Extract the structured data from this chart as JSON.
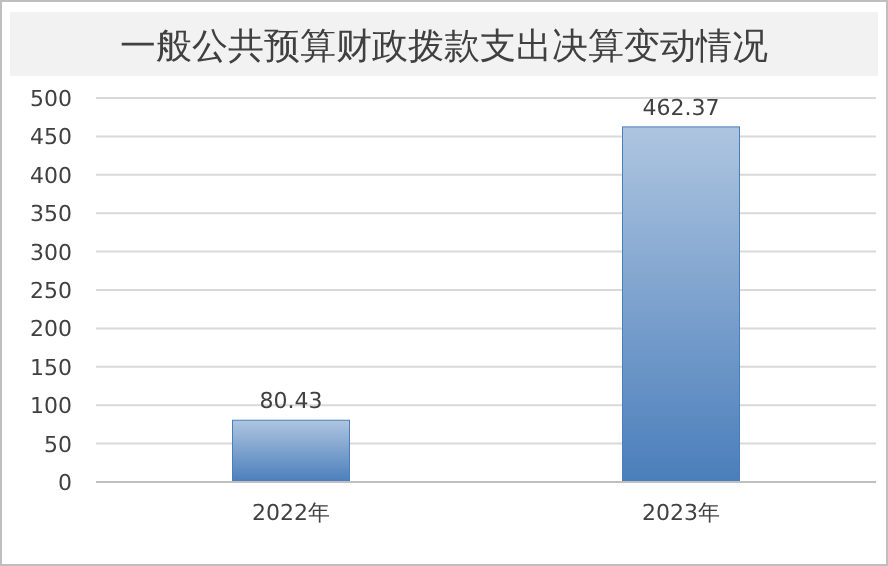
{
  "chart_data": {
    "type": "bar",
    "title": "一般公共预算财政拨款支出决算变动情况",
    "categories": [
      "2022年",
      "2023年"
    ],
    "values": [
      80.43,
      462.37
    ],
    "color": "#4a7ebb",
    "ylim": [
      0,
      500
    ],
    "yticks": [
      0,
      50,
      100,
      150,
      200,
      250,
      300,
      350,
      400,
      450,
      500
    ],
    "grid": "y",
    "data_labels": true
  }
}
